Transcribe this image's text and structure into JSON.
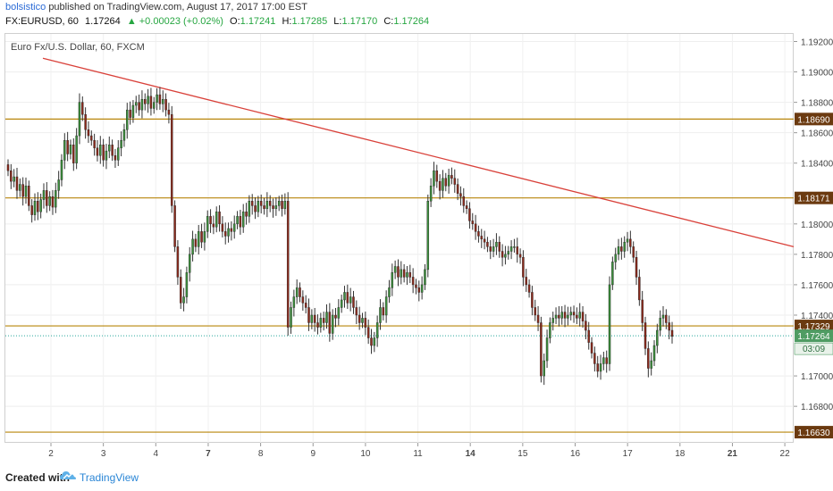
{
  "header": {
    "author": "bolsistico",
    "published_text": "published on TradingView.com, August 17, 2017 17:00 EST",
    "symbol": "FX:EURUSD, 60",
    "last": "1.17264",
    "change": "▲ +0.00023 (+0.02%)",
    "o_label": "O:",
    "o_value": "1.17241",
    "h_label": "H:",
    "h_value": "1.17285",
    "l_label": "L:",
    "l_value": "1.17170",
    "c_label": "C:",
    "c_value": "1.17264"
  },
  "chart_title": "Euro Fx/U.S. Dollar, 60, FXCM",
  "footer": {
    "created_with": "Created with",
    "brand": "TradingView"
  },
  "chart_data": {
    "type": "candlestick",
    "ylim": [
      1.1656,
      1.1925
    ],
    "y_ticks": [
      "1.19200",
      "1.19000",
      "1.18800",
      "1.18600",
      "1.18400",
      "1.18000",
      "1.17800",
      "1.17600",
      "1.17400",
      "1.17000",
      "1.16800"
    ],
    "x_ticks": [
      "2",
      "3",
      "4",
      "7",
      "8",
      "9",
      "10",
      "11",
      "14",
      "15",
      "16",
      "17",
      "18",
      "21",
      "22"
    ],
    "x_ticks_bold": [
      "7",
      "14",
      "21"
    ],
    "horizontal_levels": [
      {
        "value": 1.1869,
        "label": "1.18690"
      },
      {
        "value": 1.18171,
        "label": "1.18171"
      },
      {
        "value": 1.17329,
        "label": "1.17329"
      },
      {
        "value": 1.1663,
        "label": "1.16630"
      }
    ],
    "current_price": {
      "value": 1.17264,
      "label": "1.17264",
      "countdown": "03:09"
    },
    "trendline": {
      "from": {
        "x": "Aug 1",
        "y": 1.1909
      },
      "to": {
        "x": "Aug 22",
        "y": 1.1785
      }
    },
    "candles": [
      1.1835,
      1.1828,
      1.1831,
      1.1822,
      1.1826,
      1.1818,
      1.1825,
      1.1812,
      1.1806,
      1.1815,
      1.1808,
      1.1816,
      1.1822,
      1.1812,
      1.1818,
      1.1811,
      1.1822,
      1.1829,
      1.1842,
      1.1855,
      1.1846,
      1.1852,
      1.184,
      1.1858,
      1.188,
      1.1872,
      1.1862,
      1.1858,
      1.1855,
      1.185,
      1.1845,
      1.1852,
      1.1842,
      1.1848,
      1.1852,
      1.1845,
      1.1842,
      1.185,
      1.1855,
      1.1862,
      1.1875,
      1.187,
      1.1878,
      1.188,
      1.1875,
      1.1882,
      1.1879,
      1.1884,
      1.1876,
      1.188,
      1.1885,
      1.1879,
      1.1882,
      1.1875,
      1.1872,
      1.1812,
      1.1785,
      1.1765,
      1.1748,
      1.1752,
      1.1768,
      1.178,
      1.179,
      1.1785,
      1.1795,
      1.1788,
      1.1795,
      1.1805,
      1.18,
      1.1798,
      1.1808,
      1.18,
      1.1795,
      1.1792,
      1.1797,
      1.1795,
      1.18,
      1.1805,
      1.1798,
      1.1808,
      1.1805,
      1.1815,
      1.1812,
      1.1808,
      1.1815,
      1.1812,
      1.181,
      1.1815,
      1.1812,
      1.181,
      1.1812,
      1.1815,
      1.181,
      1.1815,
      1.1732,
      1.1745,
      1.1752,
      1.1758,
      1.1752,
      1.1748,
      1.1745,
      1.1735,
      1.174,
      1.1735,
      1.1732,
      1.1738,
      1.1735,
      1.1742,
      1.1728,
      1.174,
      1.1738,
      1.1745,
      1.175,
      1.1755,
      1.1748,
      1.1752,
      1.1745,
      1.174,
      1.1735,
      1.1738,
      1.1732,
      1.1725,
      1.172,
      1.1725,
      1.1735,
      1.1745,
      1.174,
      1.1752,
      1.1758,
      1.1768,
      1.1772,
      1.1765,
      1.177,
      1.1765,
      1.1768,
      1.1765,
      1.176,
      1.1758,
      1.1755,
      1.176,
      1.177,
      1.1815,
      1.1825,
      1.1835,
      1.1828,
      1.1822,
      1.183,
      1.1825,
      1.1832,
      1.183,
      1.1826,
      1.182,
      1.1818,
      1.1812,
      1.181,
      1.1802,
      1.18,
      1.1795,
      1.1792,
      1.179,
      1.1788,
      1.1785,
      1.1782,
      1.1785,
      1.1788,
      1.1782,
      1.1778,
      1.178,
      1.1782,
      1.1785,
      1.1785,
      1.178,
      1.1778,
      1.1765,
      1.176,
      1.1755,
      1.1745,
      1.174,
      1.1735,
      1.17,
      1.171,
      1.1725,
      1.1735,
      1.1738,
      1.174,
      1.1738,
      1.1742,
      1.1738,
      1.174,
      1.1742,
      1.174,
      1.1738,
      1.1742,
      1.1736,
      1.173,
      1.1722,
      1.1715,
      1.1708,
      1.1703,
      1.1708,
      1.1712,
      1.1708,
      1.176,
      1.1775,
      1.178,
      1.1785,
      1.1782,
      1.1788,
      1.179,
      1.1785,
      1.1778,
      1.1765,
      1.175,
      1.1735,
      1.1718,
      1.1705,
      1.171,
      1.172,
      1.173,
      1.1738,
      1.174,
      1.1735,
      1.173,
      1.1726
    ]
  }
}
